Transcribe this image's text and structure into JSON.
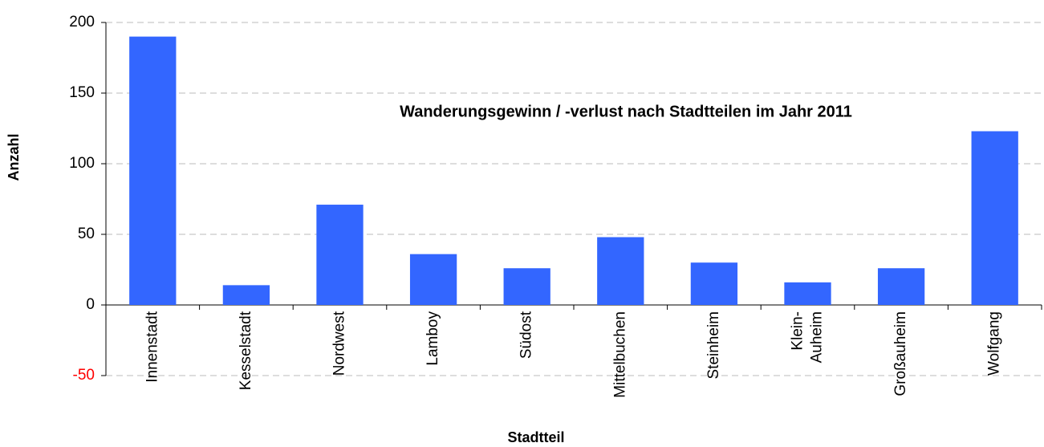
{
  "chart_data": {
    "type": "bar",
    "title": "Wanderungsgewinn / -verlust nach Stadtteilen im Jahr 2011",
    "x_label": "Stadtteil",
    "y_label": "Anzahl",
    "categories": [
      "Innenstadt",
      "Kesselstadt",
      "Nordwest",
      "Lamboy",
      "Südost",
      "Mittelbuchen",
      "Steinheim",
      "Klein-\nAuheim",
      "Großauheim",
      "Wolfgang"
    ],
    "values": [
      190,
      14,
      71,
      36,
      26,
      48,
      30,
      16,
      26,
      123
    ],
    "color": "#3366ff",
    "ylim": [
      -50,
      200
    ],
    "yticks": [
      -50,
      0,
      50,
      100,
      150,
      200
    ],
    "negative_tick_color": "#ff0000",
    "grid": true
  }
}
